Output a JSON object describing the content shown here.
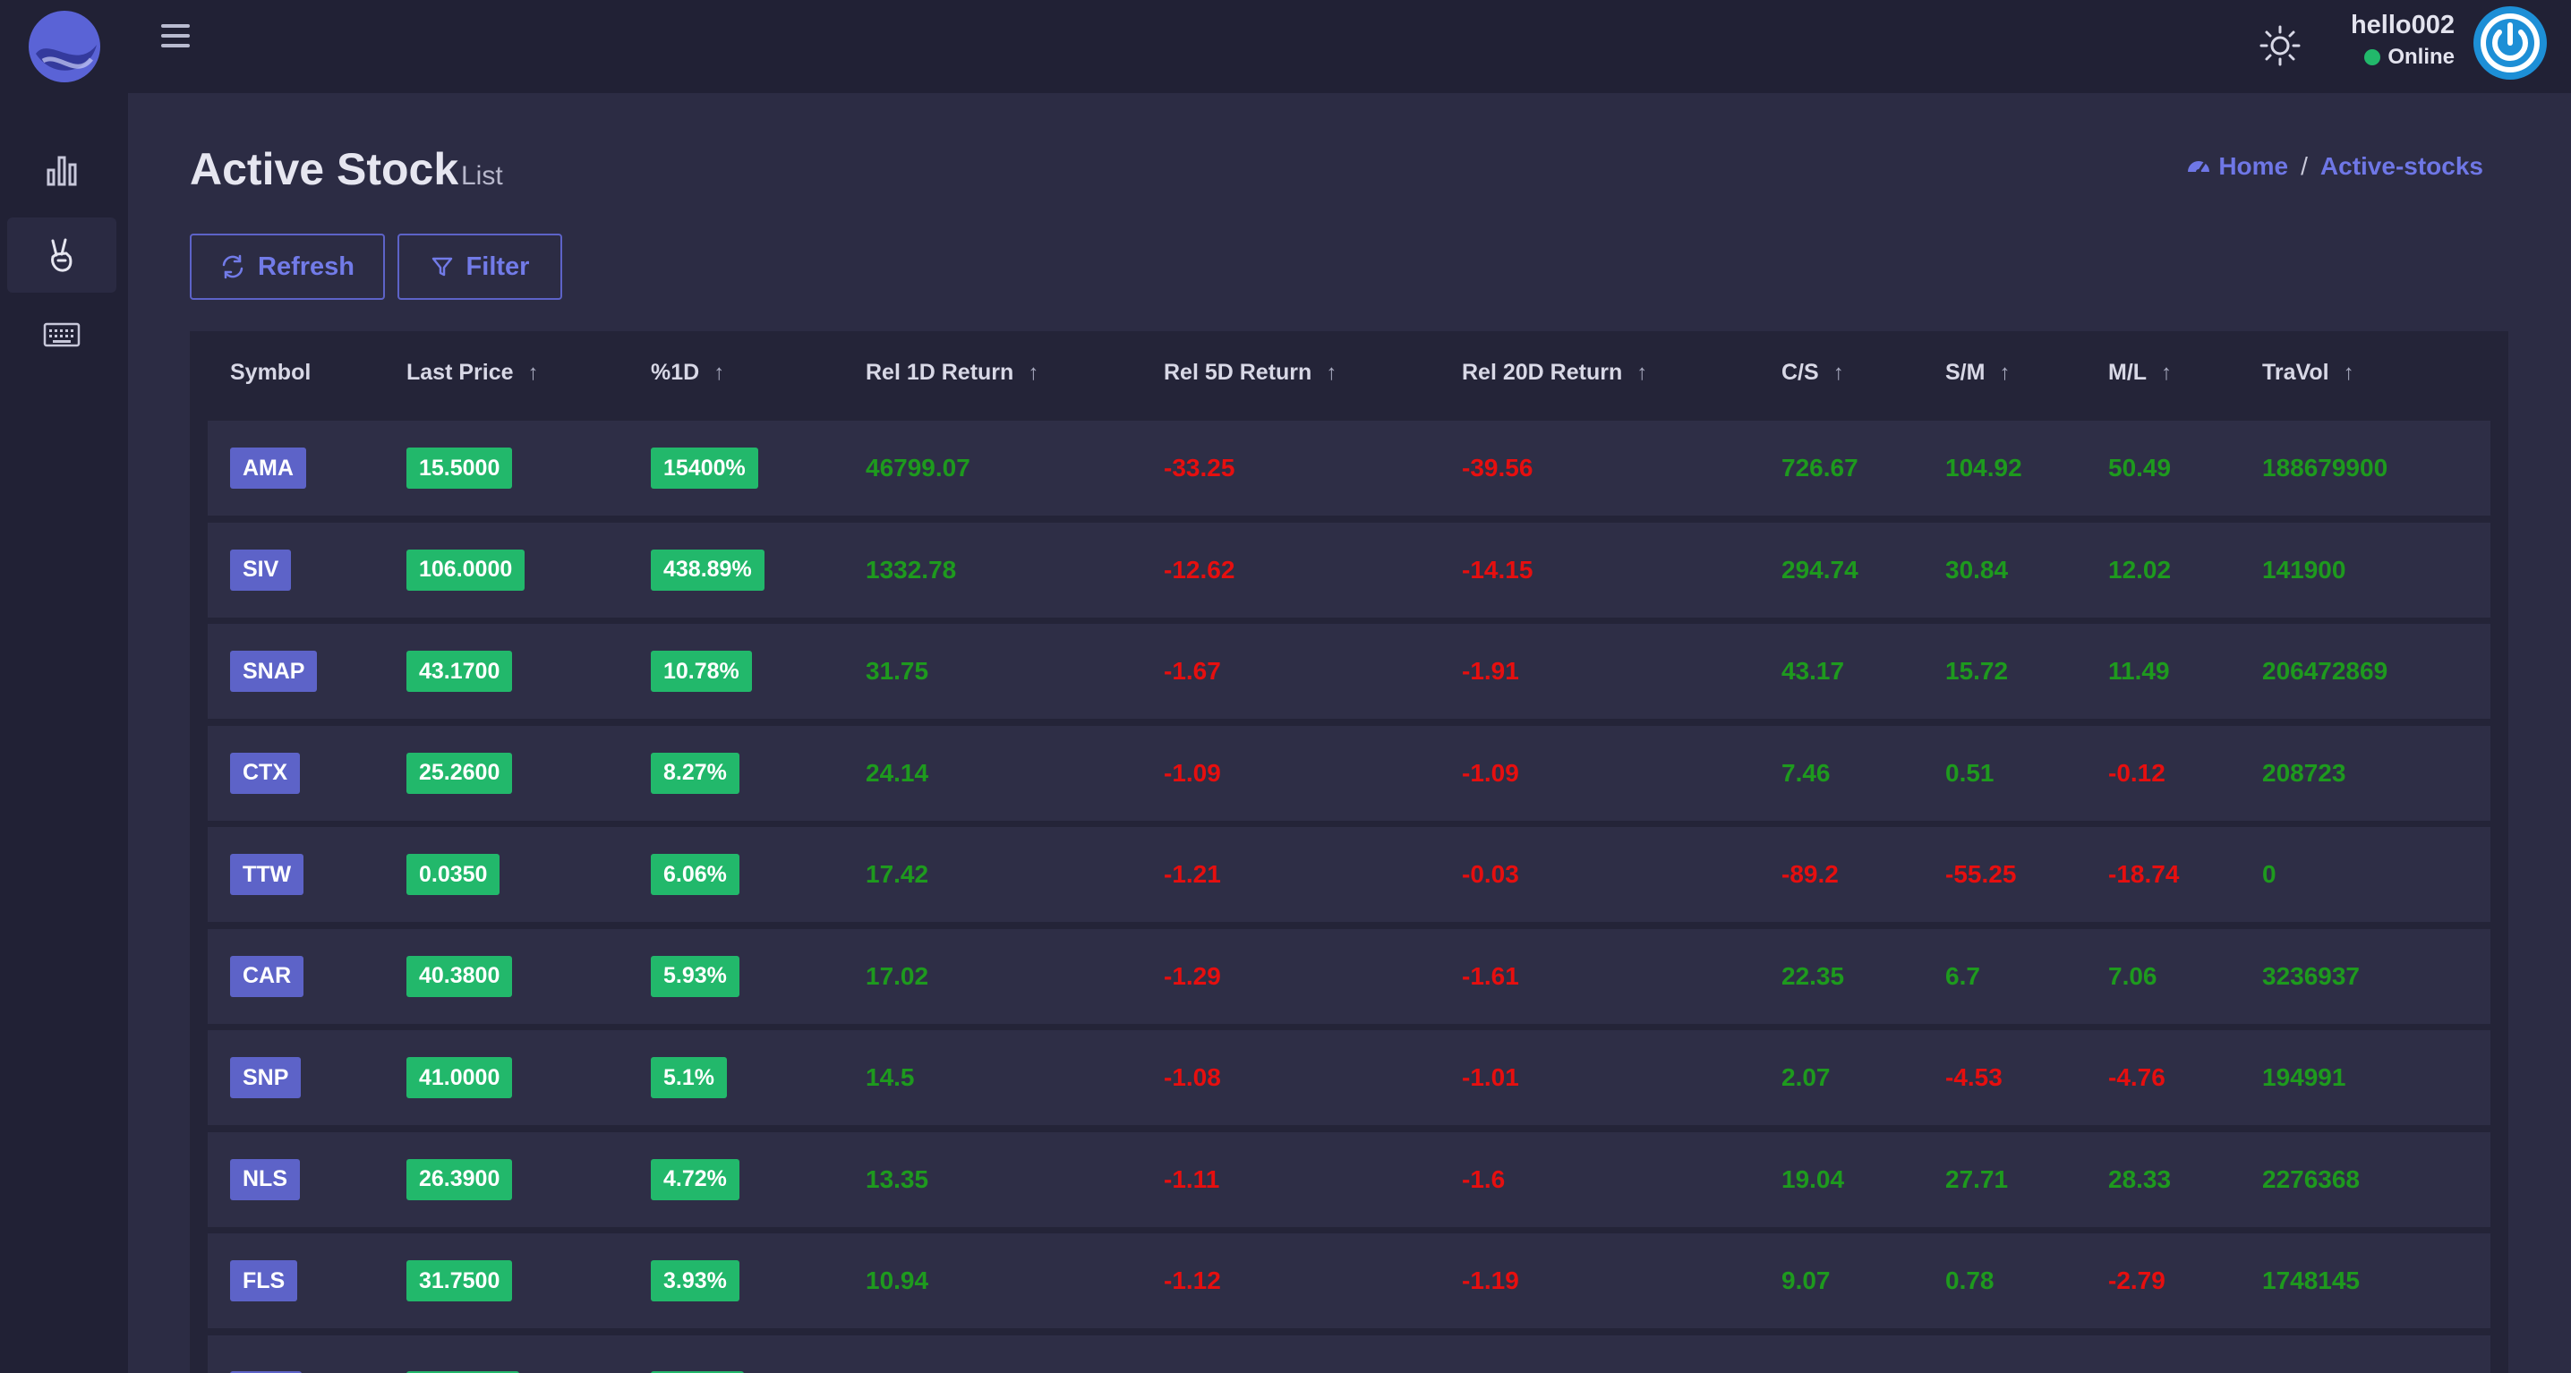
{
  "app": {
    "user": {
      "name": "hello002",
      "status": "Online"
    },
    "icons": {
      "logo": "brand-logo-icon",
      "menu": "hamburger-menu-icon",
      "theme": "sun-icon",
      "power": "power-icon"
    }
  },
  "sidebar": {
    "items": [
      {
        "icon": "bar-chart-icon",
        "active": false
      },
      {
        "icon": "peace-hand-icon",
        "active": true
      },
      {
        "icon": "keyboard-icon",
        "active": false
      }
    ]
  },
  "page": {
    "title": "Active Stock",
    "subtitle": "List"
  },
  "breadcrumb": {
    "home": "Home",
    "separator": "/",
    "current": "Active-stocks"
  },
  "toolbar": {
    "refresh_label": "Refresh",
    "filter_label": "Filter"
  },
  "colors": {
    "positive": "#1e9a1e",
    "negative": "#e60f0f",
    "badge_green": "#22b86b",
    "badge_symbol": "#5d63c8"
  },
  "table": {
    "columns": [
      "Symbol",
      "Last Price",
      "%1D",
      "Rel 1D Return",
      "Rel 5D Return",
      "Rel 20D Return",
      "C/S",
      "S/M",
      "M/L",
      "TraVol"
    ],
    "sortable": [
      false,
      true,
      true,
      true,
      true,
      true,
      true,
      true,
      true,
      true
    ],
    "rows": [
      [
        "AMA",
        "15.5000",
        "15400%",
        "46799.07",
        "-33.25",
        "-39.56",
        "726.67",
        "104.92",
        "50.49",
        "188679900"
      ],
      [
        "SIV",
        "106.0000",
        "438.89%",
        "1332.78",
        "-12.62",
        "-14.15",
        "294.74",
        "30.84",
        "12.02",
        "141900"
      ],
      [
        "SNAP",
        "43.1700",
        "10.78%",
        "31.75",
        "-1.67",
        "-1.91",
        "43.17",
        "15.72",
        "11.49",
        "206472869"
      ],
      [
        "CTX",
        "25.2600",
        "8.27%",
        "24.14",
        "-1.09",
        "-1.09",
        "7.46",
        "0.51",
        "-0.12",
        "208723"
      ],
      [
        "TTW",
        "0.0350",
        "6.06%",
        "17.42",
        "-1.21",
        "-0.03",
        "-89.2",
        "-55.25",
        "-18.74",
        "0"
      ],
      [
        "CAR",
        "40.3800",
        "5.93%",
        "17.02",
        "-1.29",
        "-1.61",
        "22.35",
        "6.7",
        "7.06",
        "3236937"
      ],
      [
        "SNP",
        "41.0000",
        "5.1%",
        "14.5",
        "-1.08",
        "-1.01",
        "2.07",
        "-4.53",
        "-4.76",
        "194991"
      ],
      [
        "NLS",
        "26.3900",
        "4.72%",
        "13.35",
        "-1.11",
        "-1.6",
        "19.04",
        "27.71",
        "28.33",
        "2276368"
      ],
      [
        "FLS",
        "31.7500",
        "3.93%",
        "10.94",
        "-1.12",
        "-1.19",
        "9.07",
        "0.78",
        "-2.79",
        "1748145"
      ]
    ]
  }
}
